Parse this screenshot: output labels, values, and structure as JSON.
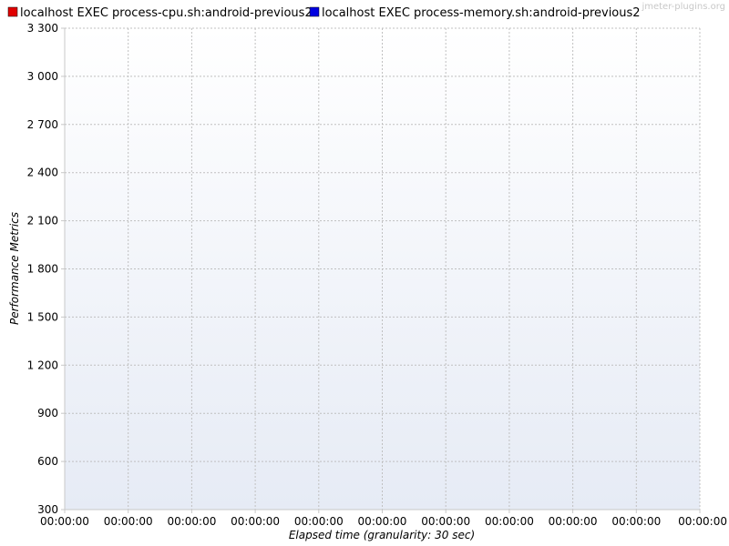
{
  "watermark": "jmeter-plugins.org",
  "chart_data": {
    "type": "line",
    "xlabel": "Elapsed time (granularity: 30 sec)",
    "ylabel": "Performance Metrics",
    "ylim": [
      300,
      3300
    ],
    "yticks": [
      "300",
      "600",
      "900",
      "1 200",
      "1 500",
      "1 800",
      "2 100",
      "2 400",
      "2 700",
      "3 000",
      "3 300"
    ],
    "yvalues": [
      300,
      600,
      900,
      1200,
      1500,
      1800,
      2100,
      2400,
      2700,
      3000,
      3300
    ],
    "xticks": [
      "00:00:00",
      "00:00:00",
      "00:00:00",
      "00:00:00",
      "00:00:00",
      "00:00:00",
      "00:00:00",
      "00:00:00",
      "00:00:00",
      "00:00:00",
      "00:00:00"
    ],
    "grid": true,
    "legend_placement": "top-left",
    "series": [
      {
        "name": "localhost EXEC process-cpu.sh:android-previous2",
        "color": "#e00000",
        "values": []
      },
      {
        "name": "localhost EXEC process-memory.sh:android-previous2",
        "color": "#0000e0",
        "values": []
      }
    ]
  }
}
